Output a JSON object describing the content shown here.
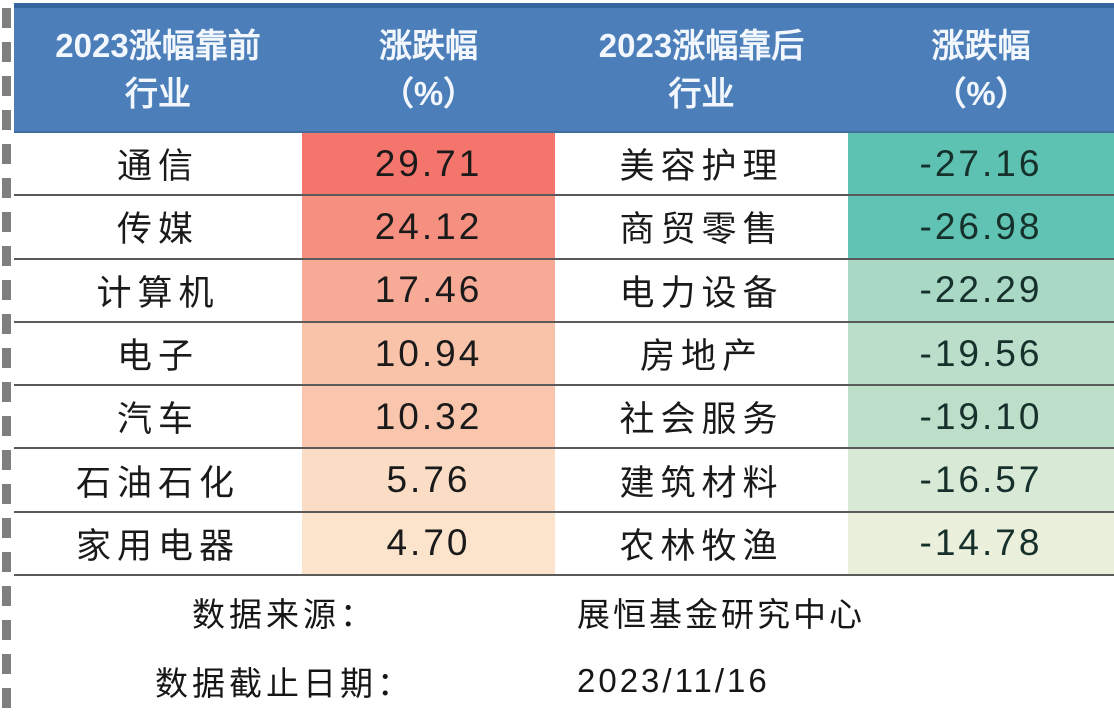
{
  "colors": {
    "header_bg": "#4c7fba",
    "header_top_border": "#36659e",
    "grid_line": "#5a5a5a",
    "dashed_border": "#7f7f7f",
    "text": "#1a1a1a"
  },
  "header": {
    "gainer_industry_line1": "2023涨幅靠前",
    "gainer_industry_line2": "行业",
    "gainer_change_line1": "涨跌幅",
    "gainer_change_line2": "（%）",
    "loser_industry_line1": "2023涨幅靠后",
    "loser_industry_line2": "行业",
    "loser_change_line1": "涨跌幅",
    "loser_change_line2": "（%）"
  },
  "table": {
    "rows": [
      {
        "gainer": "通信",
        "gain": "29.71",
        "gain_bg": "#f4756b",
        "loser": "美容护理",
        "loss": "-27.16",
        "loss_bg": "#5ec2b2"
      },
      {
        "gainer": "传媒",
        "gain": "24.12",
        "gain_bg": "#f58f7f",
        "loser": "商贸零售",
        "loss": "-26.98",
        "loss_bg": "#60c3b3"
      },
      {
        "gainer": "计算机",
        "gain": "17.46",
        "gain_bg": "#f7aa96",
        "loser": "电力设备",
        "loss": "-22.29",
        "loss_bg": "#a9d8c5"
      },
      {
        "gainer": "电子",
        "gain": "10.94",
        "gain_bg": "#f9c3aa",
        "loser": "房地产",
        "loss": "-19.56",
        "loss_bg": "#badec9"
      },
      {
        "gainer": "汽车",
        "gain": "10.32",
        "gain_bg": "#f9c5ac",
        "loser": "社会服务",
        "loss": "-19.10",
        "loss_bg": "#bddfca"
      },
      {
        "gainer": "石油石化",
        "gain": "5.76",
        "gain_bg": "#fbddc5",
        "loser": "建筑材料",
        "loss": "-16.57",
        "loss_bg": "#d8e9d6"
      },
      {
        "gainer": "家用电器",
        "gain": "4.70",
        "gain_bg": "#fbe3cc",
        "loser": "农林牧渔",
        "loss": "-14.78",
        "loss_bg": "#ebf0dd"
      }
    ]
  },
  "footer": {
    "source_label": "数据来源：",
    "source_value": "展恒基金研究中心",
    "date_label": "数据截止日期：",
    "date_value": "2023/11/16"
  },
  "chart_data": {
    "type": "table",
    "columns": [
      "2023涨幅靠前行业",
      "涨跌幅（%）",
      "2023涨幅靠后行业",
      "涨跌幅（%）"
    ],
    "series": [
      {
        "name": "2023涨幅靠前行业",
        "categories": [
          "通信",
          "传媒",
          "计算机",
          "电子",
          "汽车",
          "石油石化",
          "家用电器"
        ],
        "values": [
          29.71,
          24.12,
          17.46,
          10.94,
          10.32,
          5.76,
          4.7
        ]
      },
      {
        "name": "2023涨幅靠后行业",
        "categories": [
          "美容护理",
          "商贸零售",
          "电力设备",
          "房地产",
          "社会服务",
          "建筑材料",
          "农林牧渔"
        ],
        "values": [
          -27.16,
          -26.98,
          -22.29,
          -19.56,
          -19.1,
          -16.57,
          -14.78
        ]
      }
    ],
    "layout_hints": "heatmap color scale: red for largest gains fading to pale peach, teal for largest losses fading to pale yellow-green",
    "source": "展恒基金研究中心",
    "as_of_date": "2023/11/16"
  }
}
